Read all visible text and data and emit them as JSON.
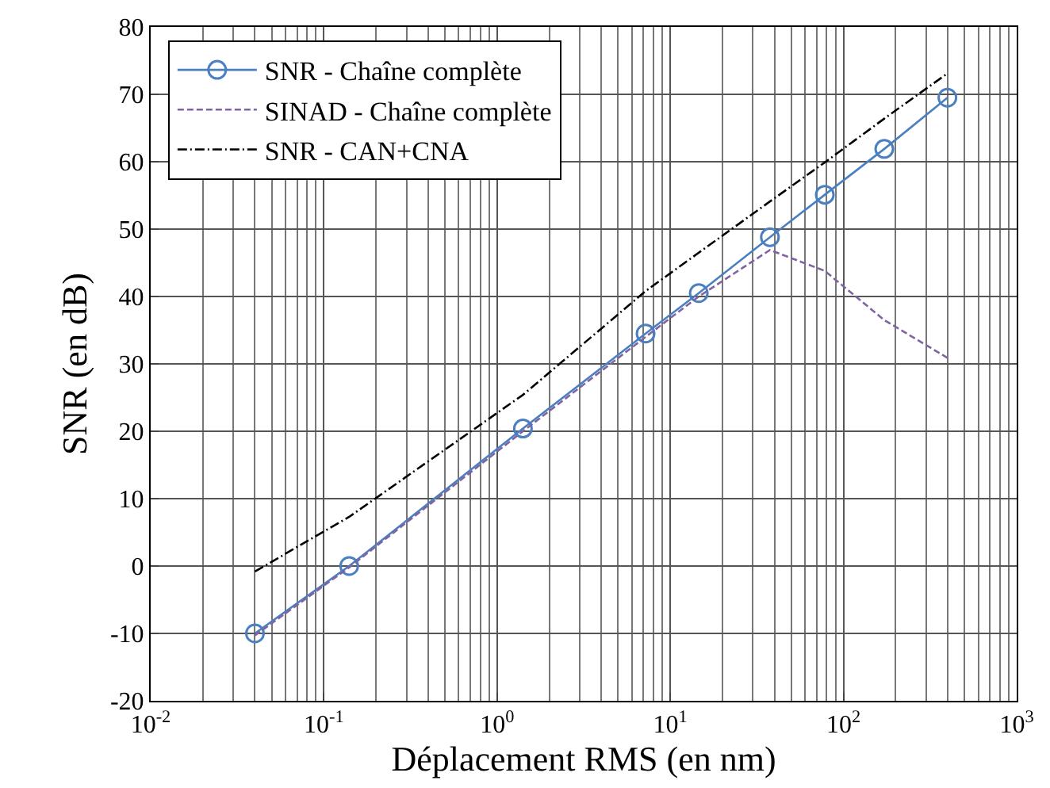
{
  "chart_data": {
    "type": "line",
    "xlabel": "Déplacement RMS (en nm)",
    "ylabel": "SNR (en dB)",
    "log": "x",
    "grid": true,
    "legend": "top left",
    "xlim": [
      0.01,
      1000
    ],
    "ylim": [
      -20,
      80
    ],
    "xticks": [
      {
        "value": 0.01,
        "label": "10$^{-2}$"
      },
      {
        "value": 0.1,
        "label": "10$^{-1}$"
      },
      {
        "value": 1,
        "label": "10$^{0}$"
      },
      {
        "value": 10,
        "label": "10$^{1}$"
      },
      {
        "value": 100,
        "label": "10$^{2}$"
      },
      {
        "value": 1000,
        "label": "10$^{3}$"
      }
    ],
    "yticks": [
      -20,
      -10,
      0,
      10,
      20,
      30,
      40,
      50,
      60,
      70,
      80
    ],
    "series": [
      {
        "name": "SNR - Chaîne complète",
        "color": "#4a7fc1",
        "marker": "circle",
        "line_style": "solid",
        "x": [
          0.04,
          0.14,
          1.41,
          7.2,
          14.6,
          37.6,
          78,
          172,
          398
        ],
        "values": [
          -10,
          0,
          20.4,
          34.5,
          40.5,
          48.8,
          55.1,
          61.9,
          69.5
        ]
      },
      {
        "name": "SINAD - Chaîne complète",
        "color": "#8064a2",
        "marker": "none",
        "line_style": "dashed",
        "x": [
          0.04,
          0.14,
          1.41,
          7.2,
          14.6,
          37.6,
          78,
          172,
          398
        ],
        "values": [
          -10.3,
          -0.2,
          20,
          34,
          40,
          46.9,
          43.8,
          36.5,
          30.9
        ]
      },
      {
        "name": "SNR - CAN+CNA",
        "color": "#000000",
        "marker": "none",
        "line_style": "dashdot",
        "x": [
          0.04,
          0.14,
          1.41,
          7.2,
          14.6,
          37.6,
          78,
          172,
          398
        ],
        "values": [
          -0.8,
          7.3,
          25.4,
          40.8,
          46.5,
          54.1,
          59.9,
          66.4,
          73.1
        ]
      }
    ]
  }
}
